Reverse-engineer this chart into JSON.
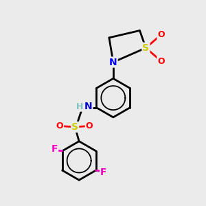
{
  "bg_color": "#ebebeb",
  "atom_colors": {
    "C": "#000000",
    "N_ring": "#0000ff",
    "N_nh": "#0000cd",
    "H_nh": "#7fbfbf",
    "S": "#cccc00",
    "O": "#ff0000",
    "F1": "#ff00cc",
    "F2": "#ee00bb"
  },
  "bond_color": "#000000",
  "bond_width": 2.0,
  "figsize": [
    3.0,
    3.0
  ],
  "dpi": 100,
  "xlim": [
    0,
    10
  ],
  "ylim": [
    0,
    10
  ]
}
